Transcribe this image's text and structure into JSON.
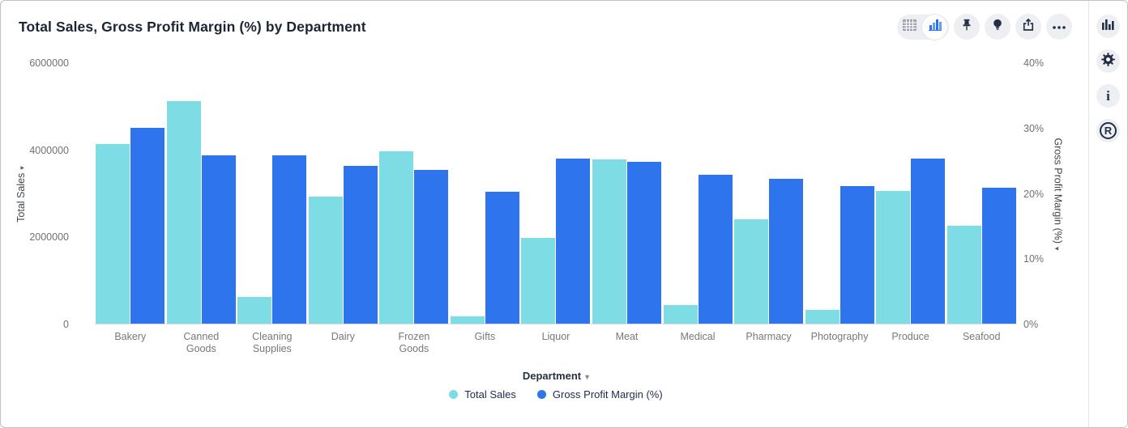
{
  "title": "Total Sales, Gross Profit Margin (%) by Department",
  "toolbar": {
    "view_toggle": {
      "options": [
        "table-view",
        "chart-view"
      ],
      "active": "chart-view"
    },
    "buttons": [
      "pin",
      "insights-bulb",
      "share",
      "more-options"
    ]
  },
  "right_rail": {
    "buttons": [
      "chart-type",
      "settings-gear",
      "info",
      "r-analysis"
    ],
    "info_glyph": "i",
    "r_glyph": "R"
  },
  "chart_data": {
    "type": "bar",
    "title": "Total Sales, Gross Profit Margin (%) by Department",
    "categories": [
      "Bakery",
      "Canned Goods",
      "Cleaning Supplies",
      "Dairy",
      "Frozen Goods",
      "Gifts",
      "Liquor",
      "Meat",
      "Medical",
      "Pharmacy",
      "Photography",
      "Produce",
      "Seafood"
    ],
    "series": [
      {
        "name": "Total Sales",
        "axis": "left",
        "color": "#7EDCE4",
        "values": [
          4130000,
          5130000,
          610000,
          2920000,
          3960000,
          170000,
          1970000,
          3790000,
          430000,
          2400000,
          320000,
          3050000,
          2250000
        ]
      },
      {
        "name": "Gross Profit Margin (%)",
        "axis": "right",
        "color": "#2E74EC",
        "values": [
          30.1,
          25.9,
          25.8,
          24.2,
          23.6,
          20.2,
          25.4,
          24.8,
          22.9,
          22.2,
          21.1,
          25.3,
          20.9
        ]
      }
    ],
    "left_axis": {
      "label": "Total Sales",
      "ticks": [
        "6000000",
        "4000000",
        "2000000",
        "0"
      ],
      "max": 6000000,
      "min": 0
    },
    "right_axis": {
      "label": "Gross Profit Margin (%)",
      "ticks": [
        "40%",
        "30%",
        "20%",
        "10%",
        "0%"
      ],
      "max": 40,
      "min": 0
    },
    "xlabel": "Department",
    "legend": [
      "Total Sales",
      "Gross Profit Margin (%)"
    ],
    "grid": false,
    "legend_position": "bottom"
  }
}
